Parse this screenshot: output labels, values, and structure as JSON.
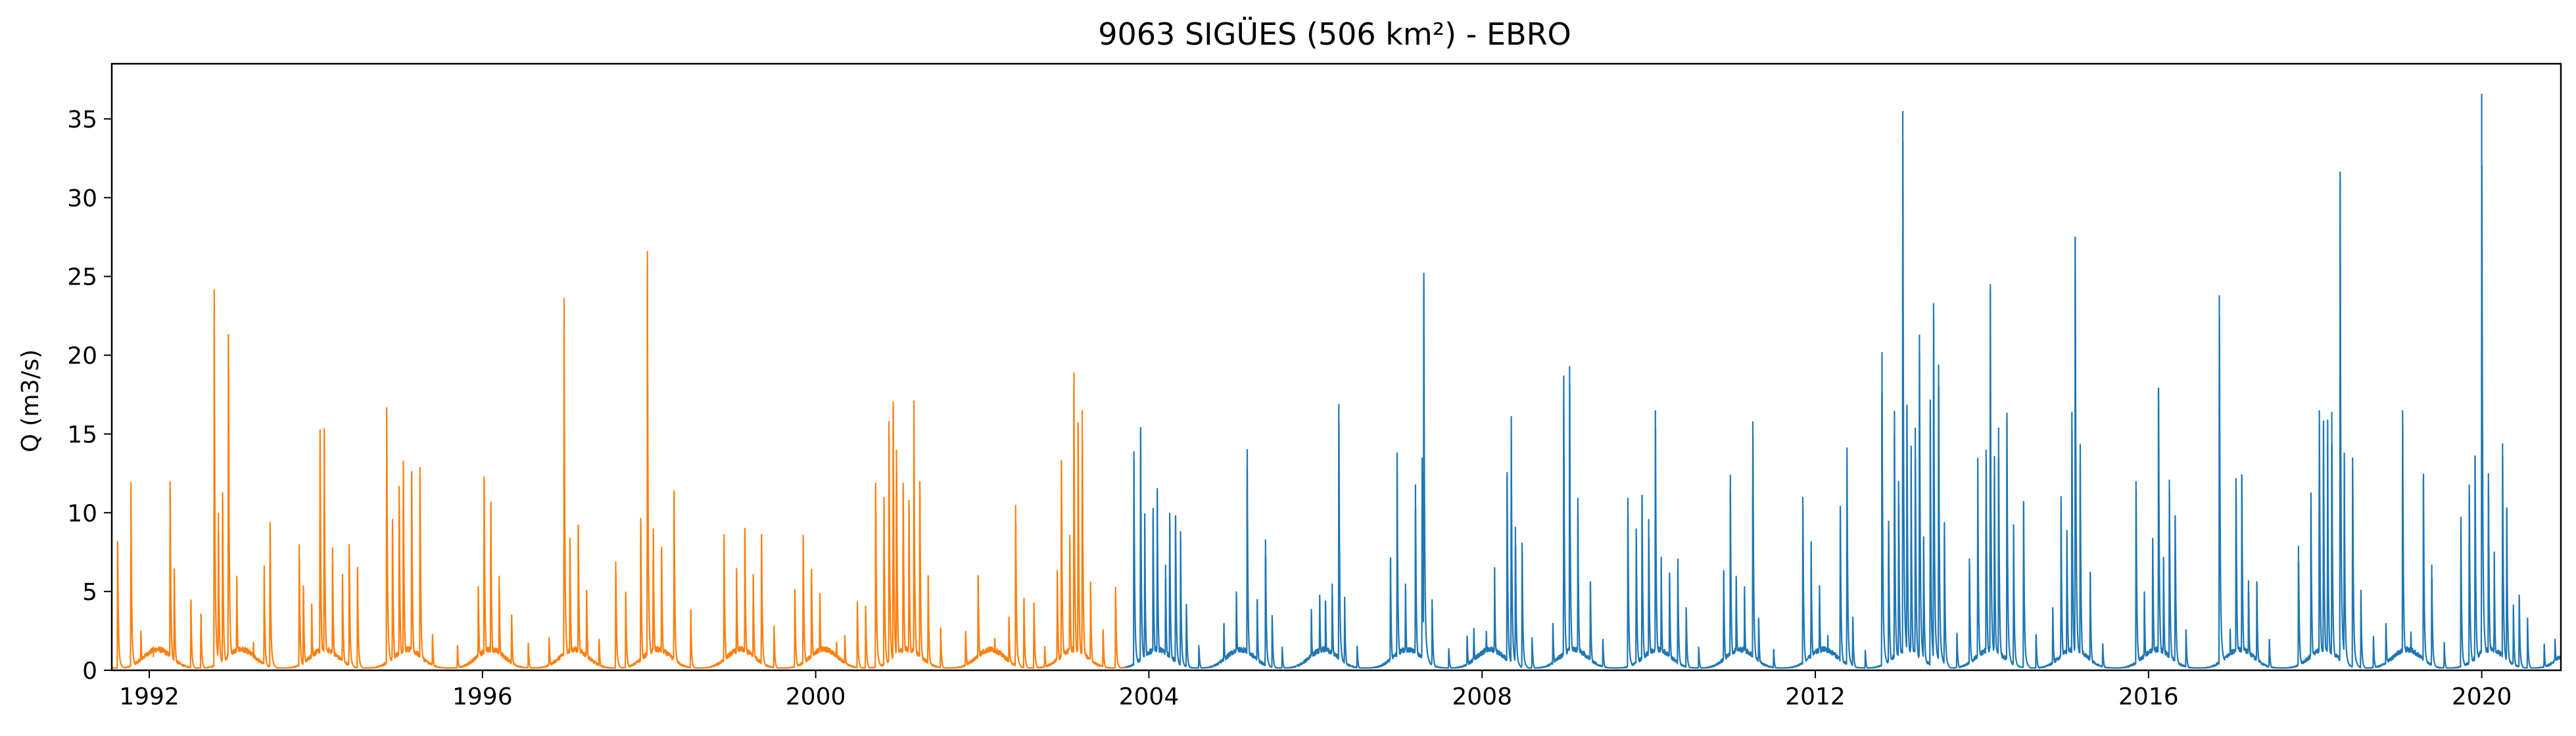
{
  "chart_data": {
    "type": "line",
    "title": "9063 SIGÜES (506 km²) - EBRO",
    "xlabel": "",
    "ylabel": "Q (m3/s)",
    "xlim": [
      1991.55,
      2020.95
    ],
    "ylim": [
      0,
      38.5
    ],
    "x_ticks": [
      1992,
      1996,
      2000,
      2004,
      2008,
      2012,
      2016,
      2020
    ],
    "x_tick_labels": [
      "1992",
      "1996",
      "2000",
      "2004",
      "2008",
      "2012",
      "2016",
      "2020"
    ],
    "y_ticks": [
      0,
      5,
      10,
      15,
      20,
      25,
      30,
      35
    ],
    "y_tick_labels": [
      "0",
      "5",
      "10",
      "15",
      "20",
      "25",
      "30",
      "35"
    ],
    "grid": false,
    "legend": false,
    "series": [
      {
        "color": "#ff7f0e",
        "x_range": [
          1991.55,
          2003.72
        ],
        "peaks": [
          [
            1991.62,
            8.2
          ],
          [
            1991.78,
            10.8
          ],
          [
            1991.9,
            2.4
          ],
          [
            1992.05,
            1.5
          ],
          [
            1992.25,
            12.0
          ],
          [
            1992.3,
            6.2
          ],
          [
            1992.5,
            4.3
          ],
          [
            1992.62,
            3.6
          ],
          [
            1992.78,
            21.9
          ],
          [
            1992.83,
            10.0
          ],
          [
            1992.88,
            11.3
          ],
          [
            1992.95,
            21.3
          ],
          [
            1993.05,
            6.0
          ],
          [
            1993.25,
            1.8
          ],
          [
            1993.38,
            6.0
          ],
          [
            1993.45,
            9.4
          ],
          [
            1993.8,
            8.0
          ],
          [
            1993.85,
            5.4
          ],
          [
            1993.95,
            4.2
          ],
          [
            1994.05,
            15.3
          ],
          [
            1994.1,
            14.8
          ],
          [
            1994.2,
            7.8
          ],
          [
            1994.32,
            6.1
          ],
          [
            1994.4,
            8.0
          ],
          [
            1994.5,
            6.3
          ],
          [
            1994.85,
            16.7
          ],
          [
            1994.92,
            9.6
          ],
          [
            1995.0,
            11.7
          ],
          [
            1995.05,
            13.3
          ],
          [
            1995.15,
            12.6
          ],
          [
            1995.25,
            12.9
          ],
          [
            1995.4,
            2.3
          ],
          [
            1995.7,
            1.5
          ],
          [
            1995.95,
            5.3
          ],
          [
            1996.02,
            12.3
          ],
          [
            1996.1,
            10.3
          ],
          [
            1996.2,
            6.0
          ],
          [
            1996.35,
            3.5
          ],
          [
            1996.55,
            1.7
          ],
          [
            1996.8,
            2.1
          ],
          [
            1996.98,
            21.4
          ],
          [
            1997.05,
            8.4
          ],
          [
            1997.15,
            9.2
          ],
          [
            1997.25,
            5.1
          ],
          [
            1997.4,
            2.0
          ],
          [
            1997.6,
            6.9
          ],
          [
            1997.72,
            5.0
          ],
          [
            1997.9,
            9.3
          ],
          [
            1997.98,
            24.1
          ],
          [
            1998.05,
            9.0
          ],
          [
            1998.15,
            7.8
          ],
          [
            1998.3,
            11.0
          ],
          [
            1998.5,
            3.7
          ],
          [
            1998.9,
            8.3
          ],
          [
            1999.05,
            6.5
          ],
          [
            1999.15,
            9.0
          ],
          [
            1999.25,
            6.1
          ],
          [
            1999.35,
            8.6
          ],
          [
            1999.5,
            2.7
          ],
          [
            1999.75,
            5.1
          ],
          [
            1999.85,
            8.6
          ],
          [
            1999.95,
            6.4
          ],
          [
            2000.05,
            4.9
          ],
          [
            2000.25,
            1.8
          ],
          [
            2000.35,
            2.2
          ],
          [
            2000.5,
            4.2
          ],
          [
            2000.6,
            4.1
          ],
          [
            2000.72,
            11.9
          ],
          [
            2000.82,
            11.0
          ],
          [
            2000.88,
            15.8
          ],
          [
            2000.93,
            16.7
          ],
          [
            2000.97,
            14.0
          ],
          [
            2001.05,
            11.9
          ],
          [
            2001.12,
            10.8
          ],
          [
            2001.18,
            15.5
          ],
          [
            2001.25,
            12.0
          ],
          [
            2001.35,
            6.0
          ],
          [
            2001.5,
            2.6
          ],
          [
            2001.8,
            2.5
          ],
          [
            2001.95,
            6.0
          ],
          [
            2002.15,
            2.0
          ],
          [
            2002.32,
            3.4
          ],
          [
            2002.4,
            10.5
          ],
          [
            2002.5,
            4.4
          ],
          [
            2002.62,
            4.3
          ],
          [
            2002.75,
            1.5
          ],
          [
            2002.9,
            6.1
          ],
          [
            2002.95,
            13.3
          ],
          [
            2003.05,
            8.6
          ],
          [
            2003.1,
            18.2
          ],
          [
            2003.15,
            15.7
          ],
          [
            2003.2,
            16.5
          ],
          [
            2003.3,
            5.4
          ],
          [
            2003.45,
            2.6
          ],
          [
            2003.6,
            5.3
          ]
        ]
      },
      {
        "color": "#1f77b4",
        "x_range": [
          2003.72,
          2020.95
        ],
        "peaks": [
          [
            2003.82,
            13.9
          ],
          [
            2003.9,
            15.1
          ],
          [
            2003.95,
            9.0
          ],
          [
            2004.05,
            10.3
          ],
          [
            2004.1,
            11.3
          ],
          [
            2004.2,
            6.7
          ],
          [
            2004.25,
            10.0
          ],
          [
            2004.32,
            9.8
          ],
          [
            2004.38,
            8.1
          ],
          [
            2004.45,
            4.2
          ],
          [
            2004.6,
            1.6
          ],
          [
            2004.9,
            2.9
          ],
          [
            2005.05,
            5.0
          ],
          [
            2005.18,
            12.9
          ],
          [
            2005.3,
            4.4
          ],
          [
            2005.4,
            8.3
          ],
          [
            2005.48,
            3.5
          ],
          [
            2005.6,
            1.5
          ],
          [
            2005.95,
            3.5
          ],
          [
            2006.05,
            4.8
          ],
          [
            2006.12,
            4.4
          ],
          [
            2006.2,
            5.5
          ],
          [
            2006.28,
            16.9
          ],
          [
            2006.35,
            4.2
          ],
          [
            2006.5,
            1.5
          ],
          [
            2006.9,
            7.0
          ],
          [
            2006.98,
            12.7
          ],
          [
            2007.08,
            5.5
          ],
          [
            2007.2,
            11.8
          ],
          [
            2007.28,
            13.5
          ],
          [
            2007.3,
            24.7
          ],
          [
            2007.4,
            4.5
          ],
          [
            2007.6,
            1.4
          ],
          [
            2007.82,
            2.2
          ],
          [
            2007.9,
            2.6
          ],
          [
            2008.05,
            2.5
          ],
          [
            2008.15,
            5.9
          ],
          [
            2008.3,
            12.3
          ],
          [
            2008.35,
            14.6
          ],
          [
            2008.4,
            9.1
          ],
          [
            2008.48,
            8.1
          ],
          [
            2008.6,
            2.1
          ],
          [
            2008.85,
            3.0
          ],
          [
            2008.98,
            17.2
          ],
          [
            2009.05,
            19.3
          ],
          [
            2009.15,
            9.9
          ],
          [
            2009.3,
            5.5
          ],
          [
            2009.45,
            2.0
          ],
          [
            2009.75,
            9.9
          ],
          [
            2009.85,
            9.0
          ],
          [
            2009.92,
            11.1
          ],
          [
            2010.0,
            9.6
          ],
          [
            2010.08,
            16.5
          ],
          [
            2010.15,
            6.5
          ],
          [
            2010.25,
            6.2
          ],
          [
            2010.35,
            6.4
          ],
          [
            2010.45,
            4.0
          ],
          [
            2010.6,
            1.5
          ],
          [
            2010.9,
            6.2
          ],
          [
            2010.98,
            11.4
          ],
          [
            2011.05,
            6.0
          ],
          [
            2011.15,
            4.8
          ],
          [
            2011.25,
            15.8
          ],
          [
            2011.32,
            3.3
          ],
          [
            2011.5,
            1.3
          ],
          [
            2011.85,
            11.0
          ],
          [
            2011.95,
            7.4
          ],
          [
            2012.05,
            5.4
          ],
          [
            2012.15,
            2.0
          ],
          [
            2012.3,
            10.2
          ],
          [
            2012.38,
            13.0
          ],
          [
            2012.45,
            3.4
          ],
          [
            2012.6,
            1.3
          ],
          [
            2012.8,
            20.2
          ],
          [
            2012.88,
            9.5
          ],
          [
            2012.95,
            14.9
          ],
          [
            2013.0,
            12.0
          ],
          [
            2013.05,
            35.5
          ],
          [
            2013.1,
            16.5
          ],
          [
            2013.15,
            12.9
          ],
          [
            2013.2,
            15.4
          ],
          [
            2013.25,
            21.3
          ],
          [
            2013.3,
            8.3
          ],
          [
            2013.38,
            15.8
          ],
          [
            2013.42,
            23.3
          ],
          [
            2013.48,
            19.4
          ],
          [
            2013.55,
            8.5
          ],
          [
            2013.7,
            2.3
          ],
          [
            2013.85,
            7.1
          ],
          [
            2013.95,
            12.2
          ],
          [
            2014.05,
            14.0
          ],
          [
            2014.1,
            24.0
          ],
          [
            2014.15,
            12.3
          ],
          [
            2014.2,
            15.4
          ],
          [
            2014.3,
            16.0
          ],
          [
            2014.38,
            8.5
          ],
          [
            2014.5,
            10.5
          ],
          [
            2014.65,
            2.3
          ],
          [
            2014.85,
            4.0
          ],
          [
            2014.95,
            10.0
          ],
          [
            2015.02,
            8.9
          ],
          [
            2015.08,
            16.4
          ],
          [
            2015.12,
            27.5
          ],
          [
            2015.18,
            13.2
          ],
          [
            2015.3,
            6.1
          ],
          [
            2015.45,
            1.7
          ],
          [
            2015.85,
            12.0
          ],
          [
            2015.95,
            4.5
          ],
          [
            2016.05,
            8.4
          ],
          [
            2016.12,
            17.9
          ],
          [
            2016.18,
            6.6
          ],
          [
            2016.25,
            12.1
          ],
          [
            2016.32,
            9.8
          ],
          [
            2016.45,
            2.6
          ],
          [
            2016.85,
            23.8
          ],
          [
            2016.98,
            2.4
          ],
          [
            2017.05,
            12.2
          ],
          [
            2017.12,
            12.4
          ],
          [
            2017.2,
            5.7
          ],
          [
            2017.3,
            5.5
          ],
          [
            2017.45,
            2.0
          ],
          [
            2017.8,
            7.9
          ],
          [
            2017.95,
            10.2
          ],
          [
            2018.05,
            16.5
          ],
          [
            2018.1,
            15.5
          ],
          [
            2018.15,
            14.4
          ],
          [
            2018.2,
            16.4
          ],
          [
            2018.3,
            31.0
          ],
          [
            2018.35,
            12.5
          ],
          [
            2018.45,
            13.5
          ],
          [
            2018.55,
            4.6
          ],
          [
            2018.7,
            2.1
          ],
          [
            2018.85,
            3.0
          ],
          [
            2019.05,
            16.5
          ],
          [
            2019.15,
            2.2
          ],
          [
            2019.3,
            12.2
          ],
          [
            2019.4,
            6.7
          ],
          [
            2019.55,
            1.6
          ],
          [
            2019.75,
            8.8
          ],
          [
            2019.85,
            11.8
          ],
          [
            2019.92,
            13.6
          ],
          [
            2020.0,
            36.6
          ],
          [
            2020.08,
            12.5
          ],
          [
            2020.15,
            6.8
          ],
          [
            2020.25,
            14.4
          ],
          [
            2020.3,
            10.1
          ],
          [
            2020.38,
            3.8
          ],
          [
            2020.45,
            4.8
          ],
          [
            2020.55,
            3.0
          ],
          [
            2020.75,
            1.5
          ],
          [
            2020.88,
            2.0
          ]
        ]
      }
    ]
  }
}
